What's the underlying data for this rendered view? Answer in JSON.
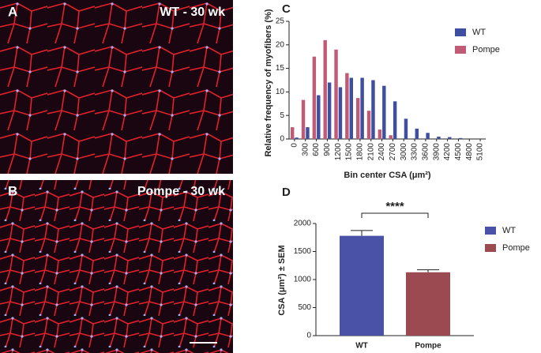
{
  "images": [
    {
      "panel_label": "A",
      "caption": "WT - 30 wk"
    },
    {
      "panel_label": "B",
      "caption": "Pompe - 30 wk"
    }
  ],
  "chart_data": [
    {
      "type": "bar",
      "panel_label": "C",
      "y_label": "Relative frequency of myofibers (%)",
      "x_label": "Bin center CSA (μm²)",
      "categories": [
        "0",
        "300",
        "600",
        "900",
        "1200",
        "1500",
        "1800",
        "2100",
        "2400",
        "2700",
        "3000",
        "3300",
        "3600",
        "3900",
        "4200",
        "4500",
        "4800",
        "5100"
      ],
      "series": [
        {
          "name": "WT",
          "color": "#3f4fa0",
          "values": [
            0.3,
            2.5,
            9.3,
            12,
            11,
            13,
            13,
            12.5,
            11.3,
            8,
            4.3,
            2.2,
            1.3,
            0.5,
            0.4,
            0.2,
            0,
            0
          ]
        },
        {
          "name": "Pompe",
          "color": "#c05a75",
          "values": [
            2.5,
            8.3,
            17.5,
            21,
            19,
            14,
            8.7,
            6,
            2,
            0.8,
            0,
            0,
            0,
            0,
            0,
            0,
            0,
            0
          ]
        }
      ],
      "ylim": [
        0,
        25
      ],
      "yticks": [
        0,
        5,
        10,
        15,
        20,
        25
      ],
      "legend": "top-right"
    },
    {
      "type": "bar",
      "panel_label": "D",
      "y_label": "CSA (μm²) ± SEM",
      "categories": [
        "WT",
        "Pompe"
      ],
      "values": [
        1780,
        1130
      ],
      "errors": [
        95,
        45
      ],
      "colors": [
        "#4a52a8",
        "#9b4a52"
      ],
      "ylim": [
        0,
        2000
      ],
      "yticks": [
        0,
        500,
        1000,
        1500,
        2000
      ],
      "annotation": "****",
      "legend": "right"
    }
  ]
}
